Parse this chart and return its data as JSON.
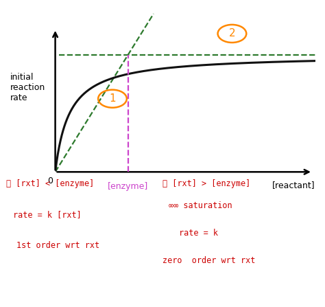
{
  "background_color": "#ffffff",
  "xlim": [
    0,
    10
  ],
  "ylim": [
    0,
    10
  ],
  "vmax": 7.2,
  "enzyme_x": 2.8,
  "Km": 0.55,
  "curve_color": "#111111",
  "dashed_line_color": "#2d7a2d",
  "vline_color": "#cc44cc",
  "orange_color": "#ff8800",
  "red_color": "#cc0000",
  "ann1_x": 2.2,
  "ann1_y": 4.5,
  "ann2_x": 6.8,
  "ann2_y": 8.5,
  "ylabel_text": "initial\nreaction\nrate",
  "xlabel_text": "[reactant]",
  "enzyme_label": "[enzyme]",
  "zero_label": "0"
}
